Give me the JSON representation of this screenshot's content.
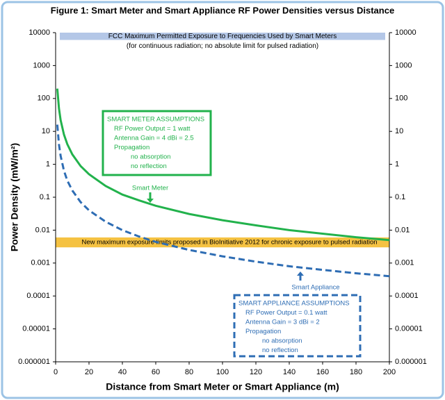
{
  "chart_data": {
    "type": "line",
    "title": "Figure 1:  Smart Meter and Smart Appliance RF Power Densities versus Distance",
    "x_label": "Distance from Smart Meter or Smart Appliance (m)",
    "y_label": "Power Density (mW/m²)",
    "x": [
      1,
      2,
      3,
      5,
      7,
      10,
      15,
      20,
      30,
      40,
      50,
      60,
      80,
      100,
      120,
      140,
      160,
      180,
      200
    ],
    "series": [
      {
        "name": "Smart Meter",
        "color": "#22b24c",
        "dash": false,
        "values": [
          199,
          50,
          22,
          8,
          4.1,
          2,
          0.88,
          0.5,
          0.22,
          0.12,
          0.08,
          0.055,
          0.031,
          0.02,
          0.014,
          0.01,
          0.0078,
          0.0061,
          0.005
        ]
      },
      {
        "name": "Smart Appliance",
        "color": "#2e6db4",
        "dash": true,
        "values": [
          16,
          4,
          1.8,
          0.64,
          0.32,
          0.16,
          0.071,
          0.04,
          0.018,
          0.01,
          0.0064,
          0.0044,
          0.0025,
          0.0016,
          0.0011,
          0.0008,
          0.00062,
          0.00049,
          0.0004
        ]
      }
    ],
    "xlim": [
      0,
      200
    ],
    "xticks": [
      0,
      20,
      40,
      60,
      80,
      100,
      120,
      140,
      160,
      180,
      200
    ],
    "ylim": [
      1e-06,
      10000
    ],
    "log_y": true,
    "yticks": [
      1e-06,
      1e-05,
      0.0001,
      0.001,
      0.01,
      0.1,
      1,
      10,
      100,
      1000,
      10000
    ],
    "y2lim": [
      1e-06,
      10000
    ],
    "y2ticks": [
      1e-06,
      1e-05,
      0.0001,
      0.001,
      0.01,
      0.1,
      1,
      10,
      100,
      1000,
      10000
    ],
    "grid": false,
    "bands": [
      {
        "label": "FCC Maximum Permitted Exposure to Frequencies Used by Smart Meters",
        "sublabel": "(for continuous radiation; no absolute limit for pulsed radiation)",
        "range": [
          6000,
          10000
        ],
        "color": "#b4c7e7"
      },
      {
        "label": "New maximum exposure limits proposed in BioInitiative 2012 for chronic exposure to pulsed radiation",
        "range": [
          0.003,
          0.006
        ],
        "color": "#f5c242"
      }
    ],
    "annotations": [
      {
        "lines": [
          "SMART METER ASSUMPTIONS",
          "RF Power  Output = 1 watt",
          "Antenna Gain =  4 dBi = 2.5",
          "Propagation",
          "no absorption",
          "no reflection"
        ]
      },
      {
        "lines": [
          "SMART APPLIANCE ASSUMPTIONS",
          "RF Power Output = 0.1 watt",
          "Antenna Gain = 3 dBi = 2",
          "Propagation",
          "no absorption",
          "no reflection"
        ]
      }
    ]
  }
}
